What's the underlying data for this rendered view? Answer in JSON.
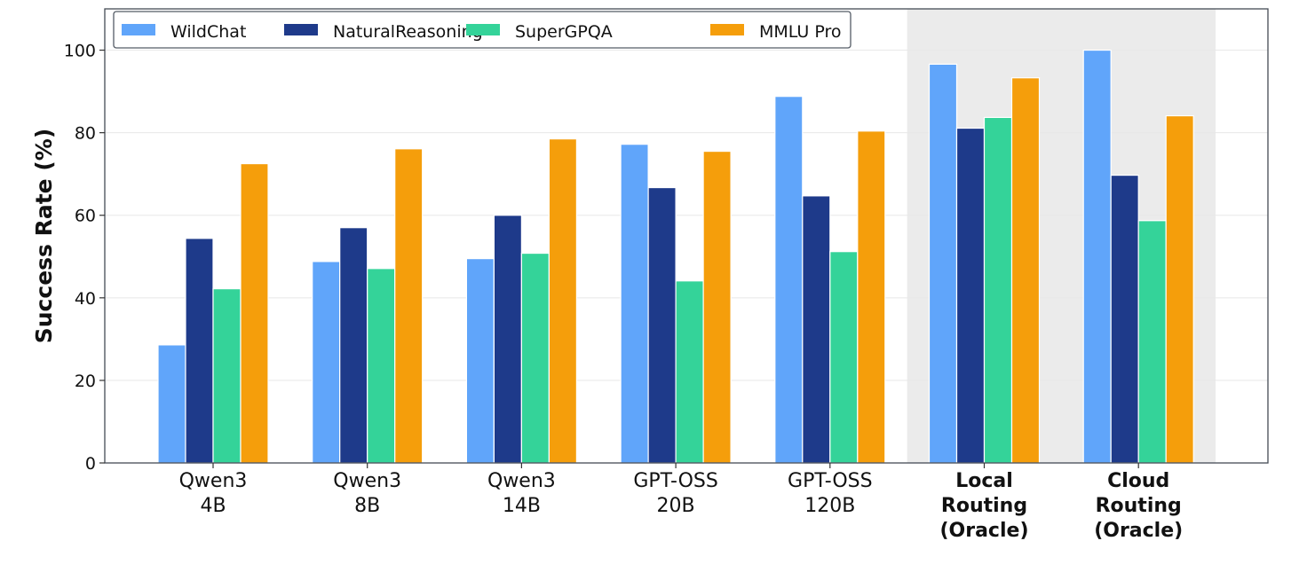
{
  "chart_data": {
    "type": "bar",
    "title": "",
    "xlabel": "",
    "ylabel": "Success Rate (%)",
    "ylim": [
      0,
      110
    ],
    "yticks": [
      0,
      20,
      40,
      60,
      80,
      100
    ],
    "grid": true,
    "legend_placement": "top-left",
    "categories": [
      [
        "Qwen3",
        "4B"
      ],
      [
        "Qwen3",
        "8B"
      ],
      [
        "Qwen3",
        "14B"
      ],
      [
        "GPT-OSS",
        "20B"
      ],
      [
        "GPT-OSS",
        "120B"
      ],
      [
        "Local",
        "Routing",
        "(Oracle)"
      ],
      [
        "Cloud",
        "Routing",
        "(Oracle)"
      ]
    ],
    "highlighted_categories": [
      5,
      6
    ],
    "highlight_color": "#ebebeb",
    "series": [
      {
        "name": "WildChat",
        "color": "#60a5fa",
        "values": [
          28.6,
          48.8,
          49.5,
          77.2,
          88.8,
          96.6,
          100.0
        ]
      },
      {
        "name": "NaturalReasoning",
        "color": "#1e3a8a",
        "values": [
          54.4,
          57.0,
          60.0,
          66.7,
          64.7,
          81.1,
          69.7
        ]
      },
      {
        "name": "SuperGPQA",
        "color": "#34d399",
        "values": [
          42.2,
          47.1,
          50.8,
          44.1,
          51.2,
          83.7,
          58.7
        ]
      },
      {
        "name": "MMLU Pro",
        "color": "#f59e0b",
        "values": [
          72.5,
          76.1,
          78.5,
          75.5,
          80.4,
          93.3,
          84.1
        ]
      }
    ]
  }
}
